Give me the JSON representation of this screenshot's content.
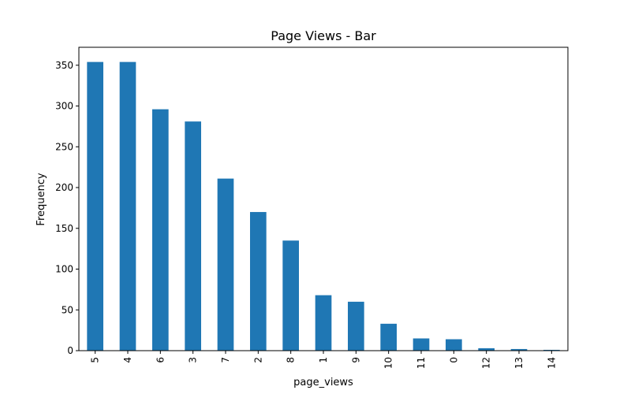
{
  "chart_data": {
    "type": "bar",
    "title": "Page Views - Bar",
    "xlabel": "page_views",
    "ylabel": "Frequency",
    "categories": [
      "5",
      "4",
      "6",
      "3",
      "7",
      "2",
      "8",
      "1",
      "9",
      "10",
      "11",
      "0",
      "12",
      "13",
      "14"
    ],
    "values": [
      354,
      354,
      296,
      281,
      211,
      170,
      135,
      68,
      60,
      33,
      15,
      14,
      3,
      2,
      1
    ],
    "ylim": [
      0,
      372
    ],
    "yticks": [
      0,
      50,
      100,
      150,
      200,
      250,
      300,
      350
    ],
    "grid": false,
    "bar_color": "#1f77b4"
  }
}
